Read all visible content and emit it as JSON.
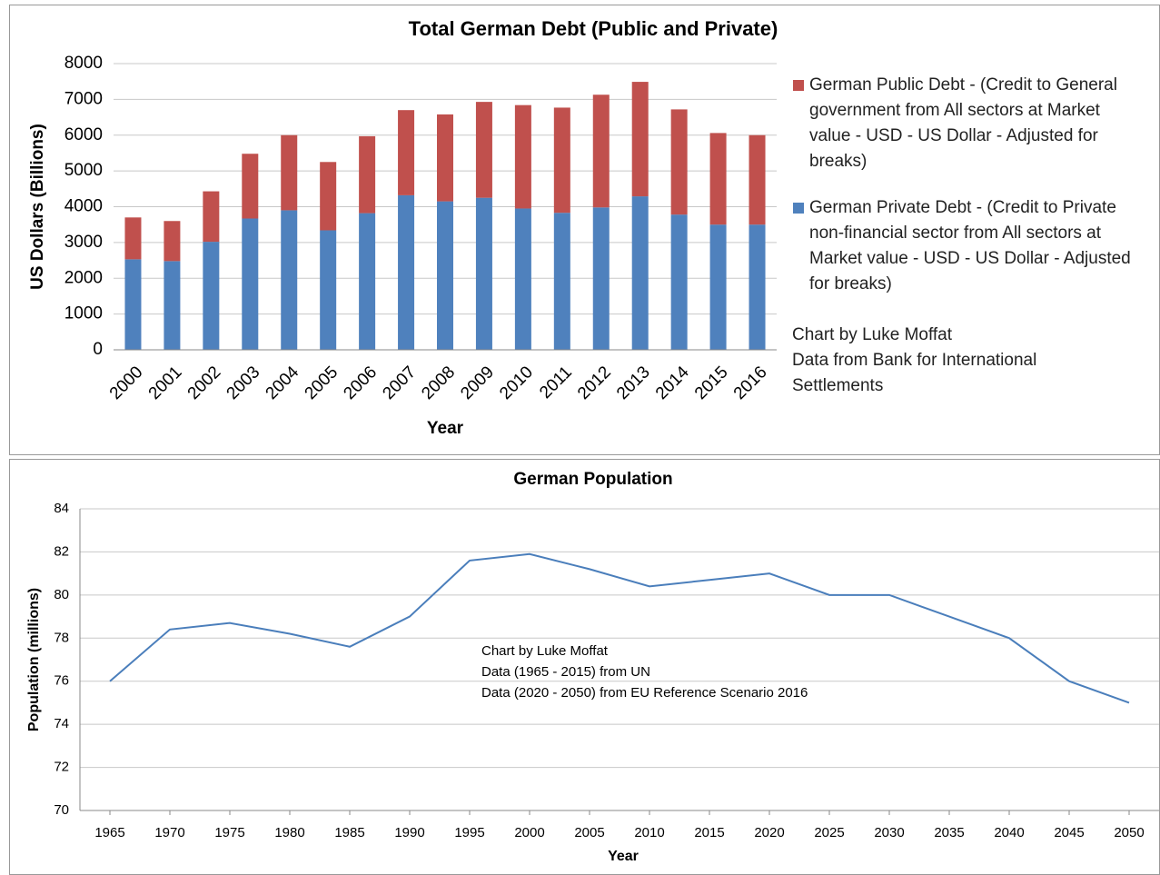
{
  "chart_data": [
    {
      "type": "stacked_bar",
      "title": "Total German Debt (Public and Private)",
      "y_label": "US Dollars (Billions)",
      "x_label": "Year",
      "categories": [
        "2000",
        "2001",
        "2002",
        "2003",
        "2004",
        "2005",
        "2006",
        "2007",
        "2008",
        "2009",
        "2010",
        "2011",
        "2012",
        "2013",
        "2014",
        "2015",
        "2016"
      ],
      "series": [
        {
          "name": "German Private Debt - (Credit to Private non-financial sector from All sectors at Market value - USD - US Dollar - Adjusted for breaks)",
          "color": "#4f81bd",
          "values": [
            2530,
            2480,
            3020,
            3670,
            3900,
            3340,
            3820,
            4320,
            4150,
            4250,
            3950,
            3830,
            3980,
            4290,
            3780,
            3500,
            3500
          ]
        },
        {
          "name": "German Public Debt - (Credit to General government from All sectors at Market value - USD - US Dollar - Adjusted for breaks)",
          "color": "#c0504d",
          "values": [
            1170,
            1120,
            1410,
            1810,
            2100,
            1910,
            2150,
            2380,
            2430,
            2680,
            2890,
            2940,
            3150,
            3200,
            2940,
            2560,
            2500
          ]
        }
      ],
      "ylim": [
        0,
        8000
      ],
      "yticks": [
        0,
        1000,
        2000,
        3000,
        4000,
        5000,
        6000,
        7000,
        8000
      ],
      "grid": true,
      "annotation": [
        "Chart by Luke Moffat",
        "Data from Bank for International Settlements"
      ]
    },
    {
      "type": "line",
      "title": "German Population",
      "y_label": "Population (millions)",
      "x_label": "Year",
      "x": [
        1965,
        1970,
        1975,
        1980,
        1985,
        1990,
        1995,
        2000,
        2005,
        2010,
        2015,
        2020,
        2025,
        2030,
        2035,
        2040,
        2045,
        2050
      ],
      "series": [
        {
          "name": "Population",
          "color": "#4a7ebb",
          "values": [
            76,
            78.4,
            78.7,
            78.2,
            77.6,
            79,
            81.6,
            81.9,
            81.2,
            80.4,
            80.7,
            81,
            80,
            80,
            79,
            78,
            76,
            75
          ]
        }
      ],
      "xlim": [
        1962.5,
        2052.5
      ],
      "xticks": [
        1965,
        1970,
        1975,
        1980,
        1985,
        1990,
        1995,
        2000,
        2005,
        2010,
        2015,
        2020,
        2025,
        2030,
        2035,
        2040,
        2045,
        2050
      ],
      "ylim": [
        70,
        84
      ],
      "yticks": [
        70,
        72,
        74,
        76,
        78,
        80,
        82,
        84
      ],
      "grid": true,
      "annotation": [
        "Chart by Luke Moffat",
        "Data (1965 - 2015) from UN",
        "Data (2020 - 2050) from EU Reference Scenario 2016"
      ]
    }
  ]
}
